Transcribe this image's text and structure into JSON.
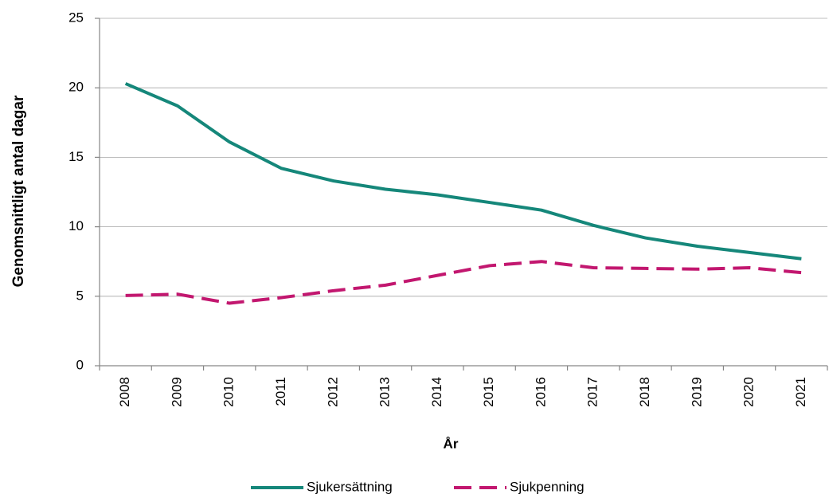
{
  "chart_data": {
    "type": "line",
    "xlabel": "År",
    "ylabel": "Genomsnittligt antal dagar",
    "categories": [
      "2008",
      "2009",
      "2010",
      "2011",
      "2012",
      "2013",
      "2014",
      "2015",
      "2016",
      "2017",
      "2018",
      "2019",
      "2020",
      "2021"
    ],
    "series": [
      {
        "name": "Sjukersättning",
        "color": "#15877a",
        "dash": false,
        "values": [
          20.3,
          18.7,
          16.1,
          14.2,
          13.3,
          12.7,
          12.3,
          11.75,
          11.2,
          10.1,
          9.2,
          8.6,
          8.15,
          7.7
        ]
      },
      {
        "name": "Sjukpenning",
        "color": "#c2176f",
        "dash": true,
        "values": [
          5.05,
          5.15,
          4.5,
          4.9,
          5.4,
          5.8,
          6.5,
          7.2,
          7.5,
          7.05,
          7.0,
          6.95,
          7.05,
          6.7
        ]
      }
    ],
    "ylim": [
      0,
      25
    ],
    "yticks": [
      0,
      5,
      10,
      15,
      20,
      25
    ],
    "grid": true,
    "legend": "bottom"
  }
}
